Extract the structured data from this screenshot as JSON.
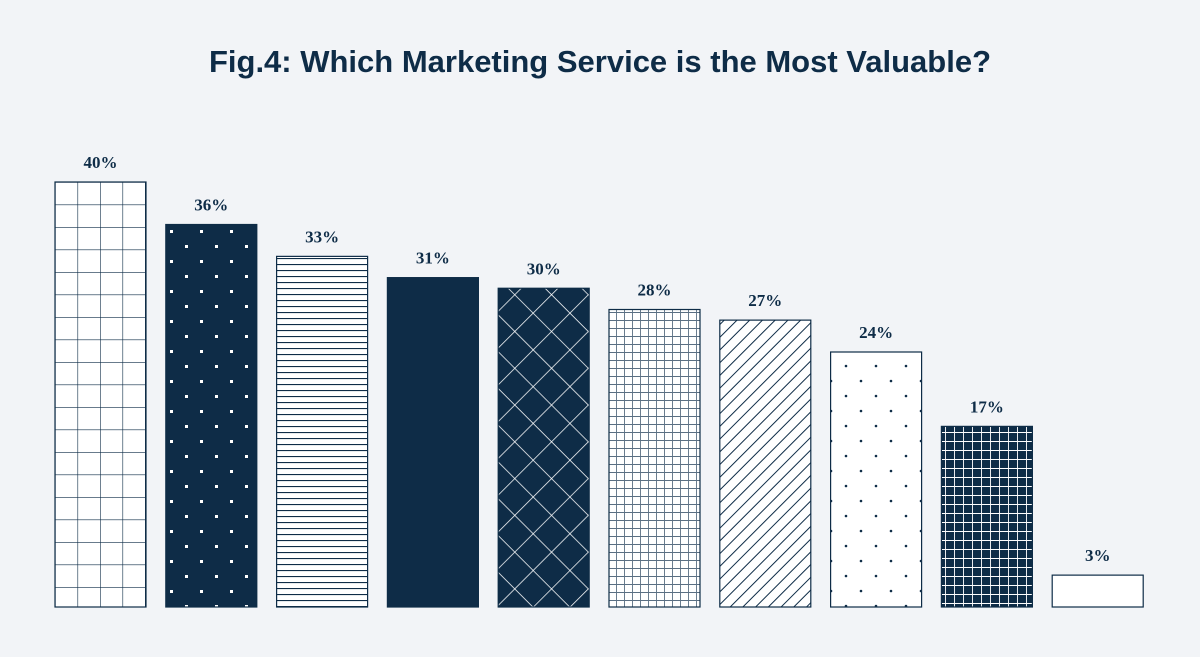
{
  "chart_data": {
    "type": "bar",
    "title": "Fig.4: Which Marketing Service is the Most Valuable?",
    "values": [
      40,
      36,
      33,
      31,
      30,
      28,
      27,
      24,
      17,
      3
    ],
    "value_labels": [
      "40%",
      "36%",
      "33%",
      "31%",
      "30%",
      "28%",
      "27%",
      "24%",
      "17%",
      "3%"
    ]
  }
}
